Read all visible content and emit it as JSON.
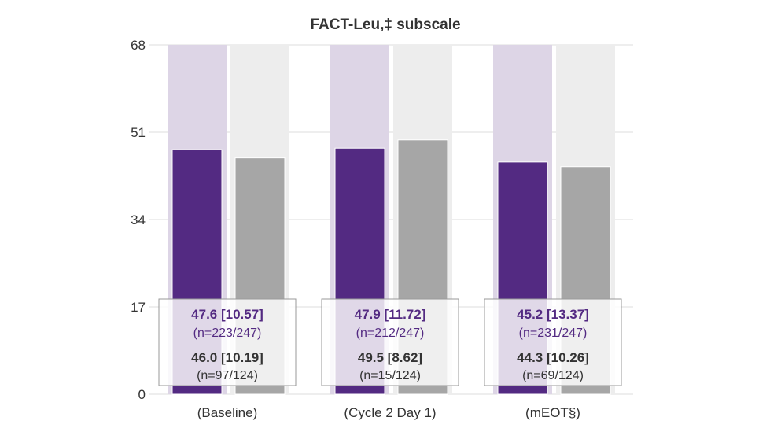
{
  "chart_data": {
    "type": "bar",
    "title": "FACT-Leu,‡ subscale",
    "categories": [
      "(Baseline)",
      "(Cycle 2 Day 1)",
      "(mEOT§)"
    ],
    "ylim": [
      0,
      68
    ],
    "yticks": [
      "0",
      "17",
      "34",
      "51",
      "68"
    ],
    "grid": true,
    "series": [
      {
        "color": "#532a82",
        "background": "#ddd5e6",
        "values": [
          47.6,
          47.9,
          45.2
        ],
        "labels": [
          "47.6 [10.57]",
          "47.9 [11.72]",
          "45.2 [13.37]"
        ],
        "n": [
          "(n=223/247)",
          "(n=212/247)",
          "(n=231/247)"
        ]
      },
      {
        "color": "#a6a6a6",
        "background": "#ededed",
        "values": [
          46.0,
          49.5,
          44.3
        ],
        "labels": [
          "46.0 [10.19]",
          "49.5 [8.62]",
          "44.3 [10.26]"
        ],
        "n": [
          "(n=97/124)",
          "(n=15/124)",
          "(n=69/124)"
        ]
      }
    ]
  }
}
